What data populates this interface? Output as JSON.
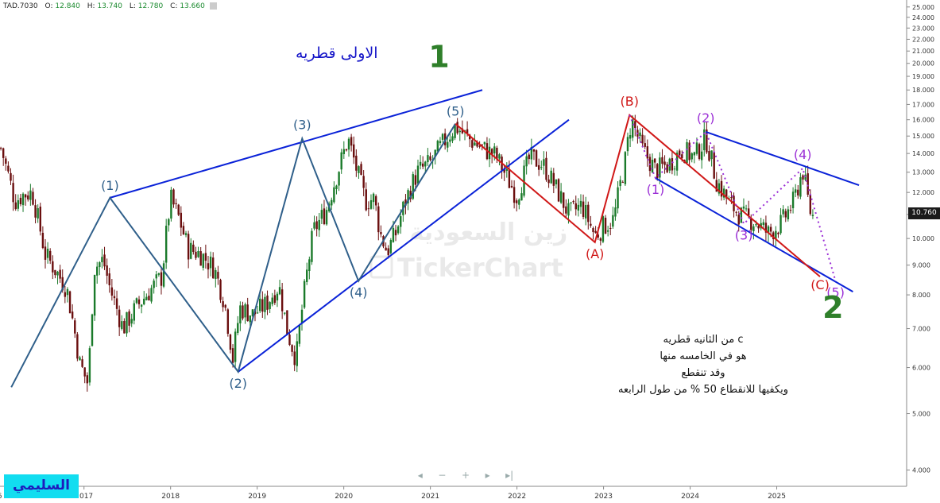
{
  "ticker": {
    "symbol": "TAD.7030",
    "open_label": "O:",
    "open": "12.840",
    "high_label": "H:",
    "high": "13.740",
    "low_label": "L:",
    "low": "12.780",
    "close_label": "C:",
    "close": "13.660"
  },
  "last_price": "10.760",
  "author": "السليمي",
  "watermark": {
    "arabic": "زين السعودية",
    "brand": "TickerChart"
  },
  "annotations": {
    "title": "الاولى قطريه",
    "note_lines": [
      "c من الثانيه قطريه",
      "هو في الخامسه منها",
      "وقد تنقطع",
      "ويكفيها للانقطاع 50 % من طول الرابعه"
    ]
  },
  "navigator": {
    "left": "◂",
    "minus": "−",
    "plus": "+",
    "right": "▸",
    "end": "▸|"
  },
  "colors": {
    "bull_candle": "#1a7a2a",
    "bear_candle": "#6a0e0e",
    "trend_lines": "#0a22d8",
    "impulse_waves": "#2f5f8a",
    "abc_waves": "#d01818",
    "sub_waves": "#9b2fd6",
    "wave_degree_labels": "#2f7f2a"
  },
  "chart_data": {
    "type": "candlestick",
    "ticker": "TAD.7030",
    "y_axis": {
      "scale": "log",
      "ticks": [
        "4.000",
        "5.000",
        "6.000",
        "7.000",
        "8.000",
        "9.000",
        "10.000",
        "11.000",
        "12.000",
        "13.000",
        "14.000",
        "15.000",
        "16.000",
        "17.000",
        "18.000",
        "19.000",
        "20.000",
        "21.000",
        "22.000",
        "23.000",
        "24.000",
        "25.000"
      ],
      "range": [
        3.75,
        25.7
      ]
    },
    "x_axis": {
      "ticks": [
        "16",
        "2017",
        "2018",
        "2019",
        "2020",
        "2021",
        "2022",
        "2023",
        "2024",
        "2025"
      ],
      "range": [
        2016.03,
        2026.5
      ]
    },
    "wave_degree_labels": [
      {
        "text": "1",
        "x": 2021.1,
        "y": 19.7
      },
      {
        "text": "2",
        "x": 2025.65,
        "y": 7.3
      }
    ],
    "impulse_wave": {
      "points": [
        {
          "x": 2016.16,
          "y": 5.55,
          "label": ""
        },
        {
          "x": 2017.3,
          "y": 11.75,
          "label": "(1)"
        },
        {
          "x": 2018.78,
          "y": 5.9,
          "label": "(2)"
        },
        {
          "x": 2019.52,
          "y": 14.85,
          "label": "(3)"
        },
        {
          "x": 2020.17,
          "y": 8.45,
          "label": "(4)"
        },
        {
          "x": 2021.29,
          "y": 15.75,
          "label": "(5)"
        }
      ]
    },
    "abc_wave": {
      "points": [
        {
          "x": 2021.29,
          "y": 15.75,
          "label": ""
        },
        {
          "x": 2022.9,
          "y": 9.85,
          "label": "(A)"
        },
        {
          "x": 2023.3,
          "y": 16.3,
          "label": "(B)"
        },
        {
          "x": 2025.5,
          "y": 8.6,
          "label": "(C)"
        }
      ]
    },
    "sub_wave": {
      "points": [
        {
          "x": 2023.3,
          "y": 16.3,
          "label": ""
        },
        {
          "x": 2023.6,
          "y": 12.7,
          "label": "(1)"
        },
        {
          "x": 2024.18,
          "y": 15.25,
          "label": "(2)"
        },
        {
          "x": 2024.62,
          "y": 10.6,
          "label": "(3)"
        },
        {
          "x": 2025.3,
          "y": 13.2,
          "label": "(4)"
        },
        {
          "x": 2025.68,
          "y": 8.45,
          "label": "(5)"
        }
      ]
    },
    "trend_lines": [
      {
        "x1": 2017.3,
        "y1": 11.75,
        "x2": 2021.6,
        "y2": 18.0
      },
      {
        "x1": 2018.78,
        "y1": 5.9,
        "x2": 2022.6,
        "y2": 16.0
      },
      {
        "x1": 2023.6,
        "y1": 12.7,
        "x2": 2025.88,
        "y2": 8.1
      },
      {
        "x1": 2024.18,
        "y1": 15.25,
        "x2": 2025.95,
        "y2": 12.35
      }
    ],
    "price_path": [
      {
        "x": 2016.04,
        "y": 14.3
      },
      {
        "x": 2016.2,
        "y": 11.6
      },
      {
        "x": 2016.3,
        "y": 11.9
      },
      {
        "x": 2016.4,
        "y": 12.0
      },
      {
        "x": 2016.55,
        "y": 9.4
      },
      {
        "x": 2016.8,
        "y": 8.2
      },
      {
        "x": 2016.95,
        "y": 6.1
      },
      {
        "x": 2017.05,
        "y": 5.6
      },
      {
        "x": 2017.12,
        "y": 8.9
      },
      {
        "x": 2017.22,
        "y": 9.2
      },
      {
        "x": 2017.3,
        "y": 8.2
      },
      {
        "x": 2017.45,
        "y": 7.0
      },
      {
        "x": 2017.6,
        "y": 7.6
      },
      {
        "x": 2017.75,
        "y": 8.1
      },
      {
        "x": 2017.9,
        "y": 8.6
      },
      {
        "x": 2018.0,
        "y": 11.7
      },
      {
        "x": 2018.1,
        "y": 10.8
      },
      {
        "x": 2018.2,
        "y": 9.6
      },
      {
        "x": 2018.35,
        "y": 9.4
      },
      {
        "x": 2018.5,
        "y": 8.9
      },
      {
        "x": 2018.62,
        "y": 7.8
      },
      {
        "x": 2018.72,
        "y": 6.2
      },
      {
        "x": 2018.8,
        "y": 7.6
      },
      {
        "x": 2018.95,
        "y": 7.4
      },
      {
        "x": 2019.1,
        "y": 7.7
      },
      {
        "x": 2019.25,
        "y": 8.3
      },
      {
        "x": 2019.35,
        "y": 6.9
      },
      {
        "x": 2019.45,
        "y": 6.2
      },
      {
        "x": 2019.55,
        "y": 8.2
      },
      {
        "x": 2019.65,
        "y": 10.3
      },
      {
        "x": 2019.8,
        "y": 11.2
      },
      {
        "x": 2019.95,
        "y": 13.3
      },
      {
        "x": 2020.05,
        "y": 14.8
      },
      {
        "x": 2020.15,
        "y": 13.1
      },
      {
        "x": 2020.25,
        "y": 11.6
      },
      {
        "x": 2020.35,
        "y": 11.7
      },
      {
        "x": 2020.42,
        "y": 10.2
      },
      {
        "x": 2020.5,
        "y": 9.5
      },
      {
        "x": 2020.6,
        "y": 10.2
      },
      {
        "x": 2020.72,
        "y": 11.7
      },
      {
        "x": 2020.85,
        "y": 13.0
      },
      {
        "x": 2021.0,
        "y": 13.5
      },
      {
        "x": 2021.15,
        "y": 14.6
      },
      {
        "x": 2021.29,
        "y": 15.6
      },
      {
        "x": 2021.45,
        "y": 14.8
      },
      {
        "x": 2021.6,
        "y": 14.3
      },
      {
        "x": 2021.75,
        "y": 13.9
      },
      {
        "x": 2021.9,
        "y": 12.6
      },
      {
        "x": 2022.0,
        "y": 11.8
      },
      {
        "x": 2022.15,
        "y": 13.8
      },
      {
        "x": 2022.3,
        "y": 13.4
      },
      {
        "x": 2022.45,
        "y": 12.2
      },
      {
        "x": 2022.6,
        "y": 11.0
      },
      {
        "x": 2022.75,
        "y": 11.4
      },
      {
        "x": 2022.9,
        "y": 10.1
      },
      {
        "x": 2023.0,
        "y": 10.5
      },
      {
        "x": 2023.12,
        "y": 10.8
      },
      {
        "x": 2023.25,
        "y": 13.6
      },
      {
        "x": 2023.32,
        "y": 16.0
      },
      {
        "x": 2023.45,
        "y": 14.2
      },
      {
        "x": 2023.6,
        "y": 13.1
      },
      {
        "x": 2023.75,
        "y": 13.4
      },
      {
        "x": 2023.9,
        "y": 14.2
      },
      {
        "x": 2024.05,
        "y": 13.8
      },
      {
        "x": 2024.18,
        "y": 14.9
      },
      {
        "x": 2024.3,
        "y": 12.6
      },
      {
        "x": 2024.45,
        "y": 11.5
      },
      {
        "x": 2024.6,
        "y": 10.9
      },
      {
        "x": 2024.75,
        "y": 10.7
      },
      {
        "x": 2024.9,
        "y": 10.2
      },
      {
        "x": 2025.05,
        "y": 10.6
      },
      {
        "x": 2025.2,
        "y": 11.6
      },
      {
        "x": 2025.3,
        "y": 13.1
      },
      {
        "x": 2025.38,
        "y": 11.2
      },
      {
        "x": 2025.44,
        "y": 10.76
      }
    ]
  }
}
